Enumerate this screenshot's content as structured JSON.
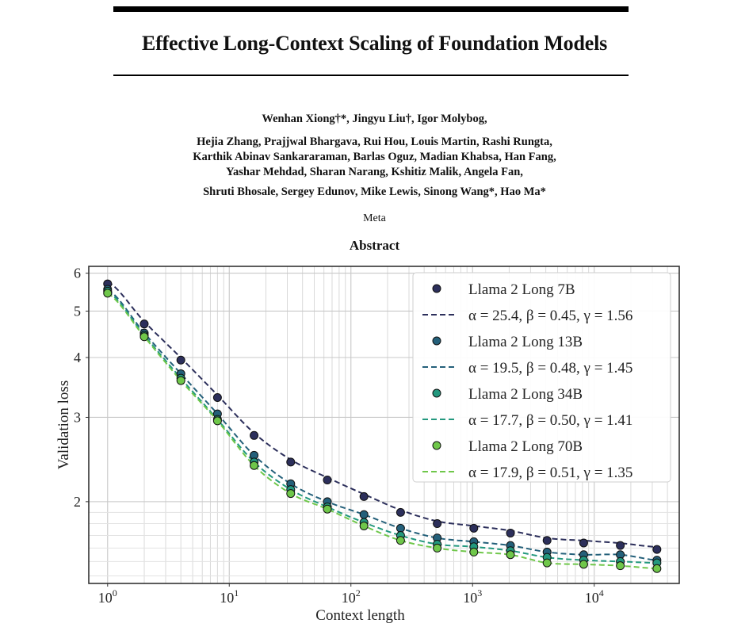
{
  "paper": {
    "title": "Effective Long-Context Scaling of Foundation Models",
    "authors_line1": "Wenhan Xiong†*, Jingyu Liu†, Igor Molybog,",
    "authors_line2": "Hejia Zhang, Prajjwal Bhargava, Rui Hou, Louis Martin, Rashi Rungta,",
    "authors_line3": "Karthik Abinav Sankararaman, Barlas Oguz, Madian Khabsa, Han Fang,",
    "authors_line4": "Yashar Mehdad, Sharan Narang, Kshitiz Malik, Angela Fan,",
    "authors_line5": "Shruti Bhosale, Sergey Edunov, Mike Lewis, Sinong Wang*, Hao Ma*",
    "affiliation": "Meta",
    "section_heading": "Abstract"
  },
  "chart_data": {
    "type": "scatter",
    "xlabel": "Context length",
    "ylabel": "Validation loss",
    "xscale": "log",
    "yscale": "log",
    "xlim": [
      0.7,
      50000
    ],
    "ylim": [
      1.35,
      6.2
    ],
    "xticks": [
      1,
      10,
      100,
      1000,
      10000
    ],
    "xtick_labels": [
      "10^0",
      "10^1",
      "10^2",
      "10^3",
      "10^4"
    ],
    "yticks": [
      2,
      3,
      4,
      5,
      6
    ],
    "ytick_labels": [
      "2",
      "3",
      "4",
      "5",
      "6"
    ],
    "grid": true,
    "legend_position": "top-right",
    "x": [
      1,
      2,
      4,
      8,
      16,
      32,
      64,
      128,
      256,
      512,
      1024,
      2048,
      4096,
      8192,
      16384,
      32768
    ],
    "series": [
      {
        "name": "Llama 2 Long 7B",
        "color": "#2c2f5b",
        "fit_label": "α = 25.4, β = 0.45, γ = 1.56",
        "fit": {
          "alpha": 25.4,
          "beta": 0.45,
          "gamma": 1.56
        },
        "values": [
          5.7,
          4.7,
          3.95,
          3.3,
          2.75,
          2.42,
          2.22,
          2.05,
          1.9,
          1.8,
          1.76,
          1.72,
          1.66,
          1.64,
          1.62,
          1.59
        ]
      },
      {
        "name": "Llama 2 Long  13B",
        "color": "#24607a",
        "fit_label": "α = 19.5, β = 0.48, γ = 1.45",
        "fit": {
          "alpha": 19.5,
          "beta": 0.48,
          "gamma": 1.45
        },
        "values": [
          5.55,
          4.5,
          3.7,
          3.05,
          2.5,
          2.18,
          2.0,
          1.88,
          1.76,
          1.68,
          1.65,
          1.62,
          1.57,
          1.55,
          1.55,
          1.51
        ]
      },
      {
        "name": "Llama 2 Long  34B",
        "color": "#23987e",
        "fit_label": "α = 17.7, β = 0.50, γ = 1.41",
        "fit": {
          "alpha": 17.7,
          "beta": 0.5,
          "gamma": 1.41
        },
        "values": [
          5.5,
          4.45,
          3.62,
          2.97,
          2.42,
          2.12,
          1.95,
          1.81,
          1.7,
          1.63,
          1.61,
          1.58,
          1.53,
          1.51,
          1.5,
          1.49
        ]
      },
      {
        "name": "Llama 2 Long  70B",
        "color": "#6fc74a",
        "fit_label": "α = 17.9, β = 0.51, γ = 1.35",
        "fit": {
          "alpha": 17.9,
          "beta": 0.51,
          "gamma": 1.35
        },
        "values": [
          5.45,
          4.42,
          3.58,
          2.95,
          2.38,
          2.08,
          1.93,
          1.78,
          1.66,
          1.6,
          1.57,
          1.55,
          1.49,
          1.48,
          1.47,
          1.45
        ]
      }
    ]
  }
}
